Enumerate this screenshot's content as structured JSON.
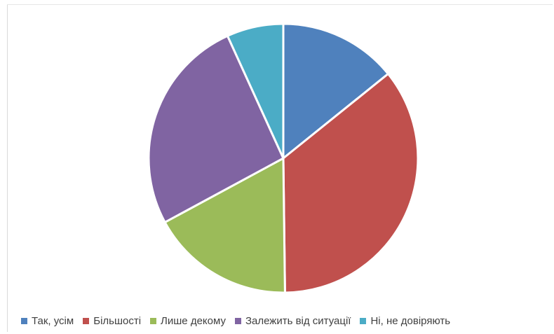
{
  "chart_data": {
    "type": "pie",
    "title": "",
    "categories": [
      "Так, усім",
      "Більшості",
      "Лише декому",
      "Залежить від ситуації",
      "Ні, не довіряють"
    ],
    "values": [
      14.2,
      35.6,
      17.3,
      26.1,
      6.8
    ],
    "unit": "percent (estimated)",
    "colors": [
      "#4F81BD",
      "#C0504D",
      "#9BBB59",
      "#8064A2",
      "#4BACC6"
    ],
    "legend": "bottom",
    "start_angle_deg": 0,
    "direction": "clockwise"
  }
}
